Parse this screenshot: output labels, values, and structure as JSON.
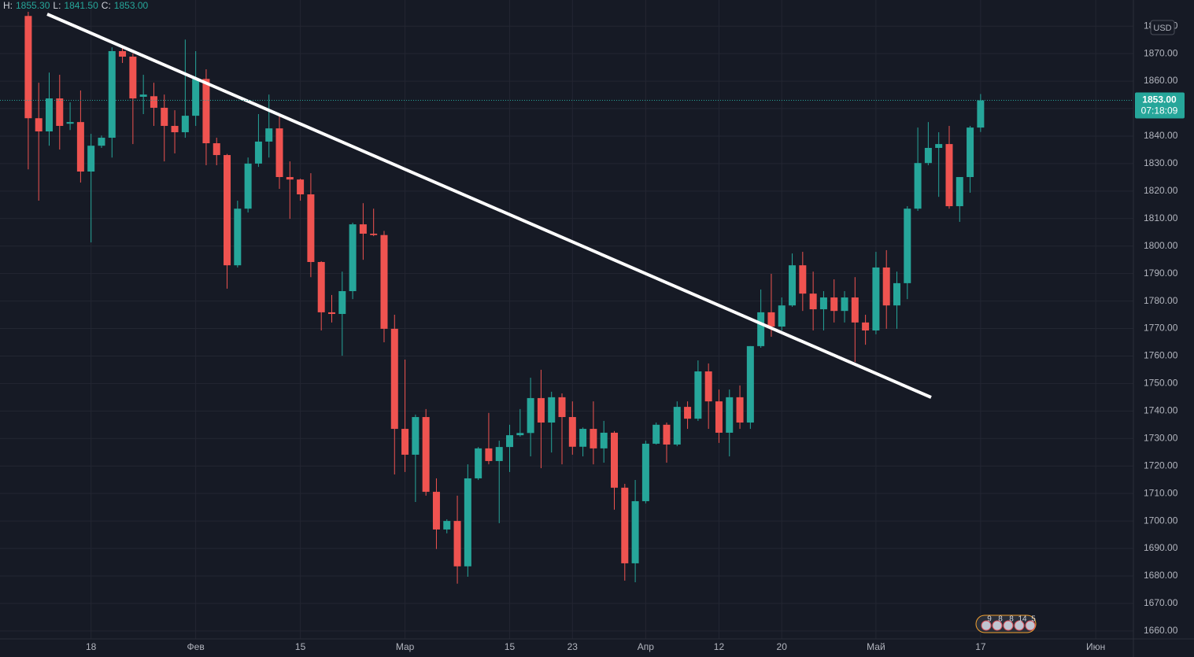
{
  "chart_data": {
    "type": "candlestick",
    "header": [
      {
        "label": "H:",
        "value": "1855.30"
      },
      {
        "label": "L:",
        "value": "1841.50"
      },
      {
        "label": "C:",
        "value": "1853.00"
      }
    ],
    "currency": "USD",
    "x": [
      0,
      1,
      2,
      3,
      4,
      5,
      6,
      7,
      8,
      9,
      10,
      11,
      12,
      13,
      14,
      15,
      16,
      17,
      18,
      19,
      20,
      21,
      22,
      23,
      24,
      25,
      26,
      27,
      28,
      29,
      30,
      31,
      32,
      33,
      34,
      35,
      36,
      37,
      38,
      39,
      40,
      41,
      42,
      43,
      44,
      45,
      46,
      47,
      48,
      49,
      50,
      51,
      52,
      53,
      54,
      55,
      56,
      57,
      58,
      59,
      60,
      61,
      62,
      63,
      64,
      65,
      66,
      67,
      68,
      69,
      70,
      71,
      72,
      73,
      74,
      75,
      76,
      77,
      78,
      79,
      80,
      81,
      82,
      83,
      84,
      85,
      86,
      87,
      88,
      89,
      90,
      91
    ],
    "open": [
      1883.7,
      1846.5,
      1841.7,
      1853.7,
      1844.5,
      1845.1,
      1827.1,
      1836.5,
      1839.4,
      1870.9,
      1868.9,
      1854.3,
      1854.5,
      1850.3,
      1843.7,
      1841.4,
      1847.4,
      1860.8,
      1837.4,
      1833.1,
      1793,
      1813.6,
      1830,
      1838,
      1842.8,
      1825.1,
      1824.2,
      1818.8,
      1794.2,
      1775.9,
      1775.3,
      1783.6,
      1807.9,
      1804.5,
      1804,
      1769.9,
      1733.5,
      1724.1,
      1737.8,
      1710.6,
      1696.9,
      1700,
      1683.5,
      1715.5,
      1726.4,
      1721.8,
      1726.9,
      1731.2,
      1732,
      1744.7,
      1735.8,
      1745,
      1737.8,
      1727,
      1733.5,
      1726.4,
      1732.1,
      1712.1,
      1684.6,
      1707.2,
      1728.1,
      1735,
      1727.8,
      1741.5,
      1737.2,
      1754.4,
      1743.5,
      1732.1,
      1745,
      1735.8,
      1763.6,
      1775.9,
      1770.7,
      1778.4,
      1793,
      1782.7,
      1777,
      1781.3,
      1776.4,
      1781.3,
      1772.2,
      1769.3,
      1792.2,
      1778.4,
      1786.5,
      1813.6,
      1830.2,
      1835.7,
      1837.1,
      1814.5,
      1825.1,
      1843.1
    ],
    "high": [
      1885.2,
      1859.4,
      1863.1,
      1862.3,
      1852.3,
      1856.6,
      1840.8,
      1840.2,
      1872.3,
      1872.3,
      1870,
      1862.3,
      1859.4,
      1855.1,
      1849.4,
      1875.1,
      1870.9,
      1864.3,
      1839.4,
      1833.5,
      1816.5,
      1832.2,
      1848,
      1855.1,
      1848,
      1830.8,
      1824.5,
      1826.5,
      1794.5,
      1782.2,
      1790.7,
      1808.5,
      1815.6,
      1813.6,
      1805.5,
      1775,
      1758.7,
      1738.7,
      1740.7,
      1715.5,
      1700.6,
      1709.2,
      1720.6,
      1726.9,
      1739.3,
      1729.2,
      1735,
      1740.7,
      1752.1,
      1755,
      1747,
      1746.4,
      1743.5,
      1734,
      1743.5,
      1736.4,
      1732.7,
      1713.5,
      1714.9,
      1729.2,
      1735.8,
      1735.8,
      1743.5,
      1743.5,
      1758.4,
      1757.3,
      1747.8,
      1747.8,
      1749.3,
      1763.6,
      1784.2,
      1789.9,
      1781.3,
      1797.3,
      1797.9,
      1790.7,
      1783.6,
      1787.9,
      1783.6,
      1788.7,
      1775,
      1797.9,
      1798.5,
      1790.7,
      1814.5,
      1843.1,
      1845.1,
      1841.4,
      1843.7,
      1825.1,
      1843.7,
      1855.3
    ],
    "low": [
      1827.9,
      1816.5,
      1836.5,
      1835.1,
      1842.2,
      1823.1,
      1801.3,
      1835.7,
      1832.2,
      1866.6,
      1837.1,
      1848,
      1843.7,
      1830.8,
      1833.7,
      1839.4,
      1843.7,
      1829.4,
      1829.4,
      1784.5,
      1792.2,
      1812.2,
      1828.8,
      1832.2,
      1820.8,
      1809.9,
      1816.5,
      1788.7,
      1769.3,
      1772.2,
      1760.1,
      1780.7,
      1795,
      1803.6,
      1765,
      1716.9,
      1717.8,
      1706.9,
      1709.2,
      1689.8,
      1695.5,
      1677.2,
      1679.7,
      1714.9,
      1720.6,
      1699.2,
      1717.8,
      1730.7,
      1723.5,
      1719.2,
      1724.9,
      1720.6,
      1724.1,
      1723.5,
      1720.6,
      1721.2,
      1704.1,
      1678.3,
      1677.7,
      1706.4,
      1727.8,
      1721.2,
      1727.2,
      1733.5,
      1736.4,
      1733.5,
      1728.4,
      1723.5,
      1733.5,
      1733.5,
      1763,
      1767,
      1769.3,
      1777.9,
      1776.4,
      1769.3,
      1769.3,
      1772.2,
      1772.2,
      1757.8,
      1764.1,
      1767.9,
      1769.9,
      1769.9,
      1780.7,
      1812.8,
      1829.4,
      1817.9,
      1813.6,
      1808.8,
      1819.4,
      1841.5
    ],
    "close": [
      1846.5,
      1841.7,
      1853.7,
      1843.7,
      1845.1,
      1827.1,
      1836.5,
      1839.4,
      1870.9,
      1868.9,
      1853.7,
      1855.1,
      1850.3,
      1843.7,
      1841.4,
      1847.4,
      1860.8,
      1837.4,
      1833.1,
      1793,
      1813.6,
      1830,
      1838,
      1842.8,
      1825.1,
      1824.2,
      1818.8,
      1794.2,
      1775.9,
      1775.3,
      1783.6,
      1807.9,
      1804.5,
      1804,
      1769.9,
      1733.5,
      1724.1,
      1737.8,
      1710.6,
      1696.9,
      1700,
      1683.5,
      1715.5,
      1726.4,
      1721.8,
      1726.9,
      1731.2,
      1732,
      1744.7,
      1735.8,
      1745,
      1737.8,
      1727,
      1733.5,
      1726.4,
      1732.1,
      1712.1,
      1684.6,
      1707.2,
      1728.1,
      1735,
      1727.8,
      1741.5,
      1737.2,
      1754.4,
      1743.5,
      1732.1,
      1745,
      1735.8,
      1763.6,
      1775.9,
      1770.7,
      1778.4,
      1793,
      1782.7,
      1777,
      1781.3,
      1776.4,
      1781.3,
      1772.2,
      1769.3,
      1792.2,
      1778.4,
      1786.5,
      1813.6,
      1830.2,
      1835.7,
      1837.1,
      1814.5,
      1825.1,
      1843.1,
      1853
    ],
    "up_color": "#26a69a",
    "down_color": "#ef5350",
    "xlim": [
      -2.7,
      105.6
    ],
    "xticks": [
      {
        "value": 6,
        "label": "18"
      },
      {
        "value": 16,
        "label": "Фев"
      },
      {
        "value": 26,
        "label": "15"
      },
      {
        "value": 36,
        "label": "Мар"
      },
      {
        "value": 46,
        "label": "15"
      },
      {
        "value": 52,
        "label": "23"
      },
      {
        "value": 59,
        "label": "Апр"
      },
      {
        "value": 66,
        "label": "12"
      },
      {
        "value": 72,
        "label": "20"
      },
      {
        "value": 81,
        "label": "Май"
      },
      {
        "value": 91,
        "label": "17"
      },
      {
        "value": 102,
        "label": "Июн"
      }
    ],
    "ylim": [
      1657.1,
      1889.5
    ],
    "yticks": [
      {
        "value": 1660,
        "label": "1660.00"
      },
      {
        "value": 1670,
        "label": "1670.00"
      },
      {
        "value": 1680,
        "label": "1680.00"
      },
      {
        "value": 1690,
        "label": "1690.00"
      },
      {
        "value": 1700,
        "label": "1700.00"
      },
      {
        "value": 1710,
        "label": "1710.00"
      },
      {
        "value": 1720,
        "label": "1720.00"
      },
      {
        "value": 1730,
        "label": "1730.00"
      },
      {
        "value": 1740,
        "label": "1740.00"
      },
      {
        "value": 1750,
        "label": "1750.00"
      },
      {
        "value": 1760,
        "label": "1760.00"
      },
      {
        "value": 1770,
        "label": "1770.00"
      },
      {
        "value": 1780,
        "label": "1780.00"
      },
      {
        "value": 1790,
        "label": "1790.00"
      },
      {
        "value": 1800,
        "label": "1800.00"
      },
      {
        "value": 1810,
        "label": "1810.00"
      },
      {
        "value": 1820,
        "label": "1820.00"
      },
      {
        "value": 1830,
        "label": "1830.00"
      },
      {
        "value": 1840,
        "label": "1840.00"
      },
      {
        "value": 1850,
        "label": "1850.00"
      },
      {
        "value": 1860,
        "label": "1860.00"
      },
      {
        "value": 1870,
        "label": "1870.00"
      },
      {
        "value": 1880,
        "label": "1880.00"
      }
    ],
    "grid": true,
    "last_price": {
      "value": 1853,
      "label": "1853.00"
    },
    "countdown": "07:18:09",
    "events": [
      "9",
      "8",
      "8",
      "14",
      "5"
    ]
  }
}
